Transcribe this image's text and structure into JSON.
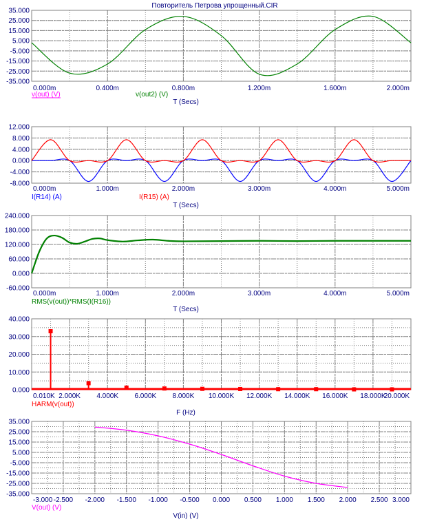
{
  "window_title": "Повторитель Петрова упрощенный.CIR",
  "colors": {
    "grid": "#808080",
    "axis_text": "#000080",
    "green": "#008000",
    "red": "#ff0000",
    "blue": "#0000ff",
    "magenta": "#ff00ff"
  },
  "chart_data": [
    {
      "type": "line",
      "xlabel": "T (Secs)",
      "xlim": [
        0,
        0.002
      ],
      "ylim": [
        -35,
        35
      ],
      "xticks": [
        "0.000m",
        "0.400m",
        "0.800m",
        "1.200m",
        "1.600m",
        "2.000m"
      ],
      "yticks": [
        "35.000",
        "25.000",
        "15.000",
        "5.000",
        "-5.000",
        "-15.000",
        "-25.000",
        "-35.000"
      ],
      "legend": [
        {
          "label": "v(out) (V)",
          "color": "#ff00ff"
        },
        {
          "label": "v(out2) (V)",
          "color": "#008000"
        }
      ],
      "series": [
        {
          "name": "v(out2) (V)",
          "color": "#008000",
          "x": [
            0,
            0.0002,
            0.0004,
            0.0006,
            0.0008,
            0.001,
            0.0012,
            0.0014,
            0.0016,
            0.0018,
            0.002
          ],
          "y": [
            3,
            -27,
            -18,
            16,
            29,
            10,
            -28,
            -18,
            16,
            29,
            3
          ]
        }
      ]
    },
    {
      "type": "line",
      "xlabel": "T (Secs)",
      "xlim": [
        0,
        0.005
      ],
      "ylim": [
        -8,
        12
      ],
      "xticks": [
        "0.000m",
        "1.000m",
        "2.000m",
        "3.000m",
        "4.000m",
        "5.000m"
      ],
      "yticks": [
        "12.000",
        "8.000",
        "4.000",
        "0.000",
        "-4.000",
        "-8.000"
      ],
      "legend": [
        {
          "label": "I(R14) (A)",
          "color": "#0000ff"
        },
        {
          "label": "I(R15) (A)",
          "color": "#ff0000"
        }
      ],
      "series": [
        {
          "name": "I(R14) (A)",
          "color": "#0000ff",
          "x": [
            0,
            0.00025,
            0.0005,
            0.00075,
            0.001,
            0.00125,
            0.0015,
            0.00175,
            0.002,
            0.00225,
            0.0025,
            0.00275,
            0.003,
            0.00325,
            0.0035,
            0.00375,
            0.004,
            0.00425,
            0.0045,
            0.00475,
            0.005
          ],
          "y": [
            0,
            0,
            0,
            -7.4,
            0,
            0,
            0,
            -7.4,
            0,
            0,
            0,
            -7.4,
            0,
            0,
            0,
            -7.4,
            0,
            0,
            0,
            -7.4,
            0
          ]
        },
        {
          "name": "I(R15) (A)",
          "color": "#ff0000",
          "x": [
            0,
            0.00025,
            0.0005,
            0.00075,
            0.001,
            0.00125,
            0.0015,
            0.00175,
            0.002,
            0.00225,
            0.0025,
            0.00275,
            0.003,
            0.00325,
            0.0035,
            0.00375,
            0.004,
            0.00425,
            0.0045,
            0.00475,
            0.005
          ],
          "y": [
            0,
            7.4,
            0,
            0,
            0,
            7.4,
            0,
            0,
            0,
            7.4,
            0,
            0,
            0,
            7.4,
            0,
            0,
            0,
            7.4,
            0,
            0,
            0
          ]
        }
      ]
    },
    {
      "type": "line",
      "xlabel": "T (Secs)",
      "xlim": [
        0,
        0.005
      ],
      "ylim": [
        -60,
        240
      ],
      "xticks": [
        "0.000m",
        "1.000m",
        "2.000m",
        "3.000m",
        "4.000m",
        "5.000m"
      ],
      "yticks": [
        "240.000",
        "180.000",
        "120.000",
        "60.000",
        "0.000",
        "-60.000"
      ],
      "legend": [
        {
          "label": "RMS(v(out))*RMS(I(R16))",
          "color": "#008000"
        }
      ],
      "series": [
        {
          "name": "RMS(v(out))*RMS(I(R16))",
          "color": "#008000",
          "x": [
            0,
            0.0001,
            0.0002,
            0.0003,
            0.0004,
            0.0005,
            0.0006,
            0.0007,
            0.0008,
            0.0009,
            0.001,
            0.0012,
            0.0014,
            0.0016,
            0.0018,
            0.002,
            0.0025,
            0.003,
            0.0035,
            0.004,
            0.0045,
            0.005
          ],
          "y": [
            0,
            90,
            145,
            157,
            148,
            128,
            123,
            132,
            143,
            145,
            138,
            132,
            137,
            140,
            135,
            133,
            134,
            135,
            134,
            135,
            135,
            135
          ]
        }
      ]
    },
    {
      "type": "bar",
      "xlabel": "F (Hz)",
      "xlim": [
        0,
        20000
      ],
      "ylim": [
        0,
        40
      ],
      "xticks": [
        "0.010K",
        "2.000K",
        "4.000K",
        "6.000K",
        "8.000K",
        "10.000K",
        "12.000K",
        "14.000K",
        "16.000K",
        "18.000K",
        "20.000K"
      ],
      "yticks": [
        "40.000",
        "30.000",
        "20.000",
        "10.000",
        "0.000"
      ],
      "legend": [
        {
          "label": "HARM(v(out))",
          "color": "#ff0000"
        }
      ],
      "series": [
        {
          "name": "HARM(v(out))",
          "color": "#ff0000",
          "x": [
            1000,
            3000,
            5000,
            7000,
            9000,
            11000,
            13000,
            15000,
            17000,
            19000
          ],
          "y": [
            33,
            3.7,
            1.2,
            0.7,
            0.5,
            0.4,
            0.3,
            0.3,
            0.2,
            0.2
          ]
        }
      ]
    },
    {
      "type": "line",
      "xlabel": "V(in) (V)",
      "xlim": [
        -3,
        3
      ],
      "ylim": [
        -35,
        35
      ],
      "xticks": [
        "-3.000",
        "-2.500",
        "-2.000",
        "-1.500",
        "-1.000",
        "-0.500",
        "0.000",
        "0.500",
        "1.000",
        "1.500",
        "2.000",
        "2.500",
        "3.000"
      ],
      "yticks": [
        "35.000",
        "25.000",
        "15.000",
        "5.000",
        "-5.000",
        "-15.000",
        "-25.000",
        "-35.000"
      ],
      "legend": [
        {
          "label": "V(out) (V)",
          "color": "#ff00ff"
        }
      ],
      "series": [
        {
          "name": "V(out) (V)",
          "color": "#ff00ff",
          "x": [
            -2.0,
            -1.5,
            -1.0,
            -0.5,
            0.0,
            0.5,
            1.0,
            1.5,
            2.0
          ],
          "y": [
            29.5,
            26.5,
            21,
            13,
            3,
            -8,
            -18,
            -25,
            -29
          ]
        }
      ]
    }
  ]
}
